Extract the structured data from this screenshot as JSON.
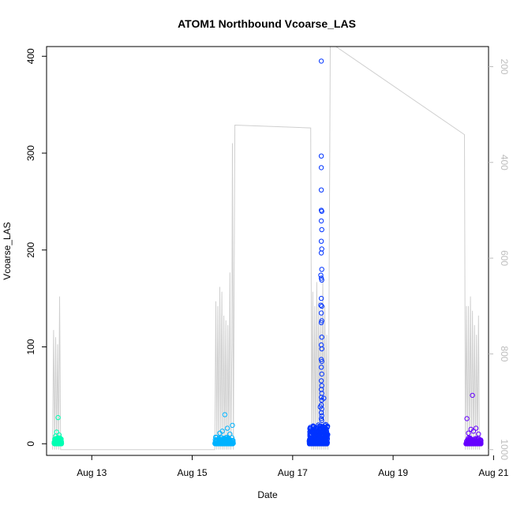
{
  "chart_data": {
    "type": "scatter",
    "title": "ATOM1 Northbound Vcoarse_LAS",
    "xlabel": "Date",
    "ylabel": "Vcoarse_LAS",
    "x_ticks": [
      "Aug 13",
      "Aug 15",
      "Aug 17",
      "Aug 19",
      "Aug 21"
    ],
    "x_tick_days": [
      13,
      15,
      17,
      19,
      21
    ],
    "xlim_days": [
      12.1,
      20.9
    ],
    "ylim": [
      -12,
      410
    ],
    "y_ticks": [
      0,
      100,
      200,
      300,
      400
    ],
    "y2_label_values": [
      200,
      400,
      600,
      800,
      1000
    ],
    "y2_lim": [
      1012,
      158
    ],
    "y2_color": "#bdbdbd",
    "series": [
      {
        "color": "#00FFB3",
        "x_range": [
          12.25,
          12.4
        ],
        "bulk_max": 6,
        "n_bulk": 120,
        "outliers": [
          [
            12.33,
            27
          ],
          [
            12.3,
            12
          ],
          [
            12.35,
            9
          ],
          [
            12.28,
            8
          ]
        ]
      },
      {
        "color": "#00B3FF",
        "x_range": [
          15.45,
          15.82
        ],
        "bulk_max": 7,
        "n_bulk": 150,
        "outliers": [
          [
            15.65,
            30
          ],
          [
            15.8,
            19
          ],
          [
            15.7,
            16
          ],
          [
            15.6,
            13
          ],
          [
            15.55,
            11
          ],
          [
            15.75,
            10
          ]
        ]
      },
      {
        "color": "#0033FF",
        "x_range": [
          17.33,
          17.7
        ],
        "bulk_max": 20,
        "n_bulk": 380,
        "outliers": [
          [
            17.57,
            395
          ],
          [
            17.57,
            297
          ],
          [
            17.57,
            285
          ],
          [
            17.57,
            262
          ],
          [
            17.57,
            241
          ],
          [
            17.58,
            240
          ],
          [
            17.57,
            230
          ],
          [
            17.58,
            221
          ],
          [
            17.57,
            209
          ],
          [
            17.58,
            201
          ],
          [
            17.57,
            197
          ],
          [
            17.58,
            180
          ],
          [
            17.56,
            174
          ],
          [
            17.57,
            171
          ],
          [
            17.58,
            169
          ],
          [
            17.57,
            150
          ],
          [
            17.56,
            143
          ],
          [
            17.58,
            142
          ],
          [
            17.57,
            135
          ],
          [
            17.58,
            127
          ],
          [
            17.57,
            125
          ],
          [
            17.58,
            110
          ],
          [
            17.57,
            102
          ],
          [
            17.58,
            98
          ],
          [
            17.57,
            87
          ],
          [
            17.58,
            85
          ],
          [
            17.57,
            79
          ],
          [
            17.58,
            72
          ],
          [
            17.57,
            65
          ],
          [
            17.58,
            60
          ],
          [
            17.57,
            56
          ],
          [
            17.58,
            52
          ],
          [
            17.57,
            48
          ],
          [
            17.58,
            45
          ],
          [
            17.57,
            40
          ],
          [
            17.58,
            36
          ],
          [
            17.57,
            32
          ],
          [
            17.58,
            29
          ],
          [
            17.57,
            26
          ],
          [
            17.58,
            24
          ],
          [
            17.62,
            47
          ],
          [
            17.55,
            38
          ]
        ]
      },
      {
        "color": "#6600FF",
        "x_range": [
          20.45,
          20.75
        ],
        "bulk_max": 6,
        "n_bulk": 150,
        "outliers": [
          [
            20.58,
            50
          ],
          [
            20.47,
            26
          ],
          [
            20.65,
            16
          ],
          [
            20.55,
            15
          ],
          [
            20.6,
            13
          ],
          [
            20.5,
            11
          ],
          [
            20.7,
            10
          ]
        ]
      }
    ],
    "secondary_line": {
      "color": "#cfcfcf",
      "unit": "y2",
      "points": [
        [
          12.22,
          1000
        ],
        [
          12.24,
          750
        ],
        [
          12.26,
          1000
        ],
        [
          12.28,
          765
        ],
        [
          12.3,
          1000
        ],
        [
          12.32,
          780
        ],
        [
          12.34,
          1000
        ],
        [
          12.36,
          680
        ],
        [
          12.38,
          1000
        ],
        [
          15.45,
          1000
        ],
        [
          15.47,
          690
        ],
        [
          15.49,
          1000
        ],
        [
          15.51,
          700
        ],
        [
          15.53,
          1000
        ],
        [
          15.55,
          660
        ],
        [
          15.57,
          1000
        ],
        [
          15.59,
          670
        ],
        [
          15.61,
          1000
        ],
        [
          15.63,
          720
        ],
        [
          15.65,
          1000
        ],
        [
          15.67,
          730
        ],
        [
          15.69,
          1000
        ],
        [
          15.71,
          740
        ],
        [
          15.73,
          1000
        ],
        [
          15.75,
          630
        ],
        [
          15.77,
          1000
        ],
        [
          15.79,
          780
        ],
        [
          15.8,
          360
        ],
        [
          15.82,
          1000
        ],
        [
          15.85,
          322
        ],
        [
          17.36,
          328
        ],
        [
          17.38,
          1000
        ],
        [
          17.4,
          670
        ],
        [
          17.42,
          1000
        ],
        [
          17.44,
          700
        ],
        [
          17.46,
          1000
        ],
        [
          17.48,
          650
        ],
        [
          17.5,
          1000
        ],
        [
          17.52,
          690
        ],
        [
          17.54,
          1000
        ],
        [
          17.56,
          720
        ],
        [
          17.58,
          1000
        ],
        [
          17.6,
          640
        ],
        [
          17.62,
          1000
        ],
        [
          17.64,
          700
        ],
        [
          17.66,
          1000
        ],
        [
          17.68,
          760
        ],
        [
          17.7,
          1000
        ],
        [
          17.72,
          800
        ],
        [
          17.75,
          150
        ],
        [
          20.42,
          342
        ],
        [
          20.44,
          1000
        ],
        [
          20.46,
          700
        ],
        [
          20.48,
          1000
        ],
        [
          20.5,
          700
        ],
        [
          20.52,
          1000
        ],
        [
          20.54,
          680
        ],
        [
          20.56,
          1000
        ],
        [
          20.58,
          710
        ],
        [
          20.6,
          1000
        ],
        [
          20.62,
          740
        ],
        [
          20.64,
          1000
        ],
        [
          20.66,
          760
        ],
        [
          20.68,
          1000
        ],
        [
          20.7,
          720
        ],
        [
          20.72,
          1000
        ]
      ]
    }
  }
}
